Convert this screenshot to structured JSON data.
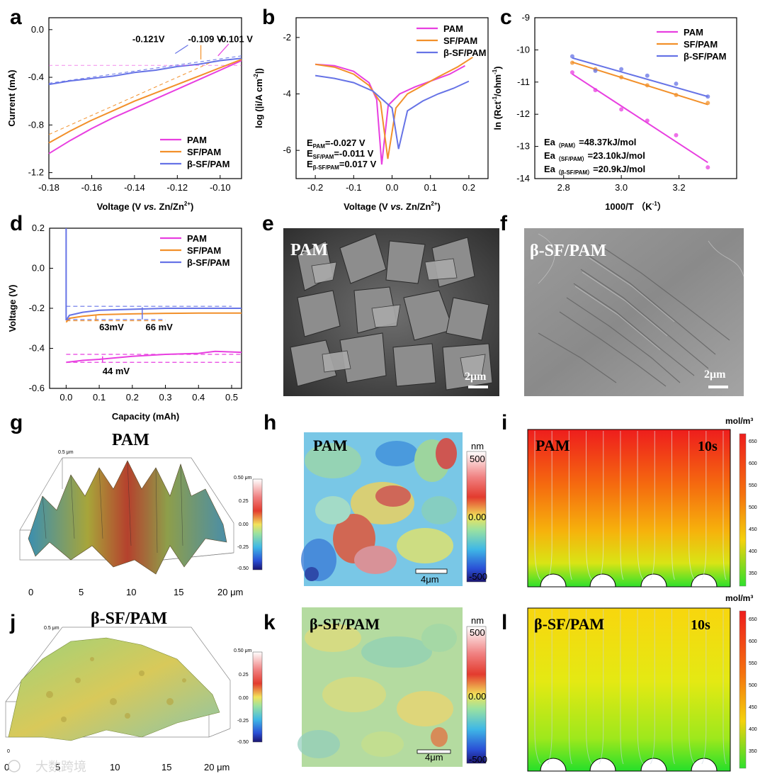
{
  "panels": {
    "a": "a",
    "b": "b",
    "c": "c",
    "d": "d",
    "e": "e",
    "f": "f",
    "g": "g",
    "h": "h",
    "i": "i",
    "j": "j",
    "k": "k",
    "l": "l"
  },
  "colors": {
    "pam": "#e83fe0",
    "sf": "#f2902a",
    "bsf": "#6673e6"
  },
  "chart_data": [
    {
      "id": "a",
      "type": "line",
      "xlabel": "Voltage (V vs. Zn/Zn2+)",
      "ylabel": "Current (mA)",
      "xlim": [
        -0.18,
        -0.09
      ],
      "ylim": [
        -1.25,
        0.1
      ],
      "xticks": [
        "-0.18",
        "-0.16",
        "-0.14",
        "-0.12",
        "-0.10"
      ],
      "yticks": [
        "0.0",
        "-0.4",
        "-0.8",
        "-1.2"
      ],
      "legend": [
        "PAM",
        "SF/PAM",
        "β-SF/PAM"
      ],
      "series": [
        {
          "name": "PAM",
          "x": [
            -0.18,
            -0.17,
            -0.16,
            -0.15,
            -0.14,
            -0.13,
            -0.12,
            -0.11,
            -0.1,
            -0.09
          ],
          "y": [
            -1.04,
            -0.93,
            -0.83,
            -0.74,
            -0.66,
            -0.58,
            -0.5,
            -0.42,
            -0.34,
            -0.26
          ]
        },
        {
          "name": "SF/PAM",
          "x": [
            -0.18,
            -0.17,
            -0.16,
            -0.15,
            -0.14,
            -0.13,
            -0.12,
            -0.11,
            -0.1,
            -0.09
          ],
          "y": [
            -0.95,
            -0.85,
            -0.76,
            -0.68,
            -0.6,
            -0.53,
            -0.46,
            -0.39,
            -0.32,
            -0.25
          ]
        },
        {
          "name": "β-SF/PAM",
          "x": [
            -0.18,
            -0.17,
            -0.16,
            -0.15,
            -0.14,
            -0.13,
            -0.12,
            -0.11,
            -0.1,
            -0.09
          ],
          "y": [
            -0.46,
            -0.43,
            -0.41,
            -0.39,
            -0.36,
            -0.34,
            -0.31,
            -0.29,
            -0.26,
            -0.24
          ]
        }
      ],
      "annotations": [
        "-0.121V",
        "-0.109 V",
        "-0.101 V"
      ]
    },
    {
      "id": "b",
      "type": "line",
      "xlabel": "Voltage (V vs. Zn/Zn2+)",
      "ylabel": "log (|i/A cm-2|)",
      "xlim": [
        -0.25,
        0.25
      ],
      "ylim": [
        -7,
        -1.3
      ],
      "xticks": [
        "-0.2",
        "-0.1",
        "0.0",
        "0.1",
        "0.2"
      ],
      "yticks": [
        "-2",
        "-4",
        "-6"
      ],
      "legend": [
        "PAM",
        "SF/PAM",
        "β-SF/PAM"
      ],
      "series": [
        {
          "name": "PAM",
          "x": [
            -0.2,
            -0.15,
            -0.1,
            -0.06,
            -0.04,
            -0.027,
            -0.01,
            0.02,
            0.06,
            0.1,
            0.15,
            0.19
          ],
          "y": [
            -2.95,
            -3.0,
            -3.2,
            -3.6,
            -4.2,
            -6.5,
            -4.4,
            -4.0,
            -3.75,
            -3.55,
            -3.3,
            -3.0
          ]
        },
        {
          "name": "SF/PAM",
          "x": [
            -0.2,
            -0.15,
            -0.1,
            -0.06,
            -0.03,
            -0.011,
            0.01,
            0.04,
            0.08,
            0.12,
            0.17,
            0.21
          ],
          "y": [
            -2.95,
            -3.05,
            -3.3,
            -3.7,
            -4.3,
            -6.3,
            -4.5,
            -4.0,
            -3.7,
            -3.4,
            -3.05,
            -2.7
          ]
        },
        {
          "name": "β-SF/PAM",
          "x": [
            -0.2,
            -0.15,
            -0.1,
            -0.05,
            0.0,
            0.017,
            0.04,
            0.08,
            0.12,
            0.16,
            0.2
          ],
          "y": [
            -3.35,
            -3.45,
            -3.6,
            -3.9,
            -4.5,
            -5.95,
            -4.6,
            -4.25,
            -4.0,
            -3.8,
            -3.55
          ]
        }
      ],
      "annotations": [
        {
          "label": "E",
          "sub": "PAM",
          "value": "=-0.027 V"
        },
        {
          "label": "E",
          "sub": "SF/PAM",
          "value": "=-0.011 V"
        },
        {
          "label": "E",
          "sub": "β-SF/PAM",
          "value": "=0.017 V"
        }
      ]
    },
    {
      "id": "c",
      "type": "scatter",
      "xlabel": "1000/T （K-1）",
      "ylabel": "ln (Rct-1/ohm-1)",
      "xlim": [
        2.7,
        3.4
      ],
      "ylim": [
        -14,
        -9
      ],
      "xticks": [
        "2.8",
        "3.0",
        "3.2"
      ],
      "yticks": [
        "-9",
        "-10",
        "-11",
        "-12",
        "-13",
        "-14"
      ],
      "legend": [
        "PAM",
        "SF/PAM",
        "β-SF/PAM"
      ],
      "series": [
        {
          "name": "PAM",
          "x": [
            2.83,
            2.91,
            3.0,
            3.09,
            3.19,
            3.3
          ],
          "y": [
            -10.7,
            -11.25,
            -11.85,
            -12.2,
            -12.65,
            -13.65
          ],
          "fit": [
            [
              2.83,
              -10.75
            ],
            [
              3.3,
              -13.5
            ]
          ]
        },
        {
          "name": "SF/PAM",
          "x": [
            2.83,
            2.91,
            3.0,
            3.09,
            3.19,
            3.3
          ],
          "y": [
            -10.4,
            -10.6,
            -10.85,
            -11.1,
            -11.4,
            -11.65
          ],
          "fit": [
            [
              2.83,
              -10.38
            ],
            [
              3.3,
              -11.7
            ]
          ]
        },
        {
          "name": "β-SF/PAM",
          "x": [
            2.83,
            2.91,
            3.0,
            3.09,
            3.19,
            3.3
          ],
          "y": [
            -10.2,
            -10.65,
            -10.6,
            -10.8,
            -11.05,
            -11.45
          ],
          "fit": [
            [
              2.83,
              -10.25
            ],
            [
              3.3,
              -11.45
            ]
          ]
        }
      ],
      "annotations": [
        {
          "label": "Ea",
          "sub": "（PAM）",
          "value": "=48.37kJ/mol"
        },
        {
          "label": "Ea",
          "sub": "（SF/PAM）",
          "value": "=23.10kJ/mol"
        },
        {
          "label": "Ea",
          "sub": "（β-SF/PAM）",
          "value": "=20.9kJ/mol"
        }
      ]
    },
    {
      "id": "d",
      "type": "line",
      "xlabel": "Capacity (mAh)",
      "ylabel": "Voltage (V)",
      "xlim": [
        -0.05,
        0.53
      ],
      "ylim": [
        -0.6,
        0.2
      ],
      "xticks": [
        "0.0",
        "0.1",
        "0.2",
        "0.3",
        "0.4",
        "0.5"
      ],
      "yticks": [
        "0.2",
        "0.0",
        "-0.2",
        "-0.4",
        "-0.6"
      ],
      "legend": [
        "PAM",
        "SF/PAM",
        "β-SF/PAM"
      ],
      "series": [
        {
          "name": "PAM",
          "x": [
            0.0,
            0.05,
            0.1,
            0.2,
            0.3,
            0.4,
            0.45,
            0.53
          ],
          "y": [
            -0.47,
            -0.46,
            -0.455,
            -0.44,
            -0.43,
            -0.425,
            -0.415,
            -0.42
          ]
        },
        {
          "name": "SF/PAM",
          "x": [
            0.0,
            0.01,
            0.05,
            0.1,
            0.2,
            0.3,
            0.4,
            0.53
          ],
          "y": [
            -0.27,
            -0.25,
            -0.24,
            -0.232,
            -0.228,
            -0.225,
            -0.224,
            -0.224
          ]
        },
        {
          "name": "β-SF/PAM",
          "x": [
            0.0,
            0.01,
            0.05,
            0.1,
            0.2,
            0.3,
            0.4,
            0.53
          ],
          "y": [
            -0.26,
            -0.235,
            -0.22,
            -0.21,
            -0.205,
            -0.2,
            -0.2,
            -0.2
          ]
        }
      ],
      "annotations": [
        "63mV",
        "66 mV",
        "44 mV"
      ]
    }
  ],
  "images": {
    "e": {
      "title": "PAM",
      "scale": "2μm"
    },
    "f": {
      "title": "β-SF/PAM",
      "scale": "2μm"
    },
    "g": {
      "title": "PAM",
      "colorbar": [
        "0.50 μm",
        "0.25",
        "0.00",
        "-0.25",
        "-0.50"
      ],
      "xticks": [
        "0",
        "5",
        "10",
        "15",
        "20 μm"
      ],
      "zlabel": "0.5 μm"
    },
    "h": {
      "title": "PAM",
      "unit": "nm",
      "colorbar": [
        "500",
        "0.00",
        "-500"
      ],
      "scale": "4μm"
    },
    "i": {
      "title": "PAM",
      "time": "10s",
      "unit": "mol/m³",
      "colorbar": [
        "650",
        "600",
        "550",
        "500",
        "450",
        "400",
        "350"
      ]
    },
    "j": {
      "title": "β-SF/PAM",
      "colorbar": [
        "0.50 μm",
        "0.25",
        "0.00",
        "-0.25",
        "-0.50"
      ],
      "xticks": [
        "0",
        "5",
        "10",
        "15",
        "20 μm"
      ],
      "zlabel": "0.5 μm"
    },
    "k": {
      "title": "β-SF/PAM",
      "unit": "nm",
      "colorbar": [
        "500",
        "0.00",
        "-500"
      ],
      "scale": "4μm"
    },
    "l": {
      "title": "β-SF/PAM",
      "time": "10s",
      "unit": "mol/m³",
      "colorbar": [
        "650",
        "600",
        "550",
        "500",
        "450",
        "400",
        "350"
      ]
    }
  },
  "watermark": "大数跨境"
}
